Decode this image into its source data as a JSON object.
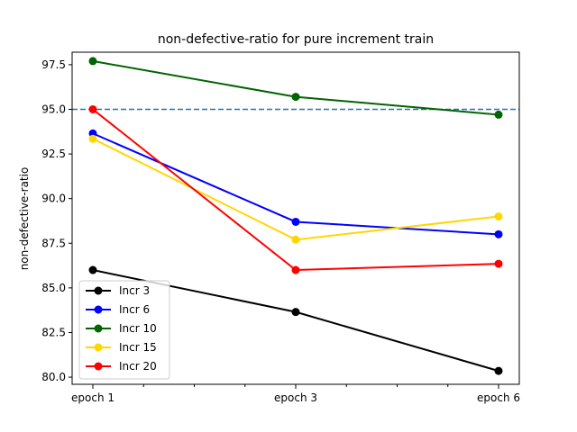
{
  "chart_data": {
    "type": "line",
    "title": "non-defective-ratio for pure increment train",
    "xlabel": "",
    "ylabel": "non-defective-ratio",
    "x_tick_labels": [
      "epoch 1",
      "epoch 3",
      "epoch 6"
    ],
    "y_ticks": [
      "80.0",
      "82.5",
      "85.0",
      "87.5",
      "90.0",
      "92.5",
      "95.0",
      "97.5"
    ],
    "ylim": [
      79.6,
      98.2
    ],
    "grid": false,
    "legend_position": "lower-left",
    "reference_line": {
      "y": 95.0,
      "style": "dashed",
      "color": "#1f77b4"
    },
    "series": [
      {
        "name": "Incr 3",
        "color": "#000000",
        "values": [
          86.0,
          83.65,
          80.35
        ]
      },
      {
        "name": "Incr 6",
        "color": "#0000ff",
        "values": [
          93.65,
          88.7,
          88.0
        ]
      },
      {
        "name": "Incr 10",
        "color": "#006400",
        "values": [
          97.7,
          95.7,
          94.7
        ]
      },
      {
        "name": "Incr 15",
        "color": "#ffd700",
        "values": [
          93.35,
          87.7,
          89.0
        ]
      },
      {
        "name": "Incr 20",
        "color": "#ff0000",
        "values": [
          95.0,
          86.0,
          86.35
        ]
      }
    ]
  }
}
